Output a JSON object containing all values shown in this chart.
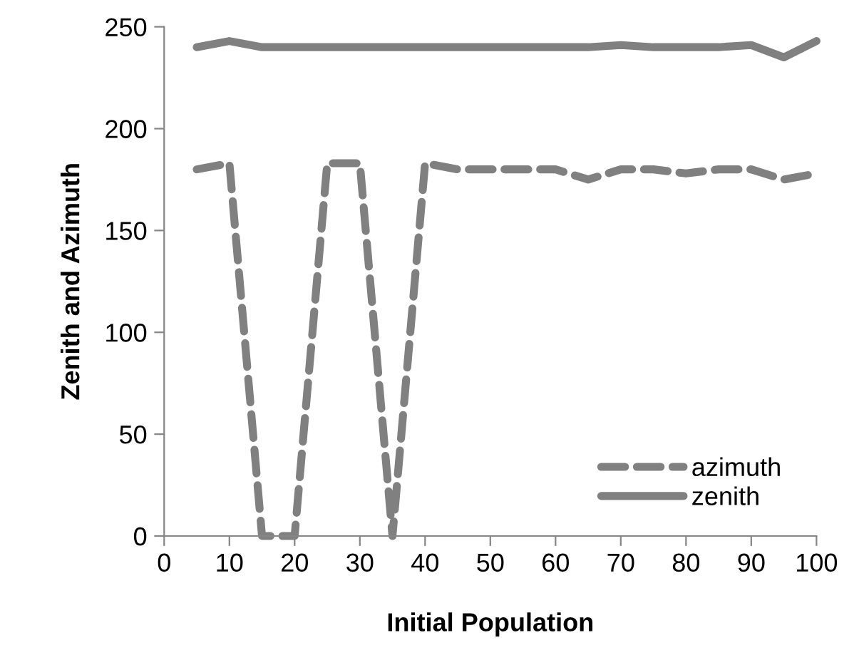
{
  "chart_data": {
    "type": "line",
    "xlabel": "Initial Population",
    "ylabel": "Zenith and Azimuth",
    "x": [
      5,
      10,
      15,
      20,
      25,
      30,
      35,
      40,
      45,
      50,
      55,
      60,
      65,
      70,
      75,
      80,
      85,
      90,
      95,
      100
    ],
    "series": [
      {
        "name": "azimuth",
        "color": "#808080",
        "line_style": "dashed",
        "values": [
          180,
          183,
          0,
          0,
          183,
          183,
          0,
          183,
          180,
          180,
          180,
          180,
          175,
          180,
          180,
          178,
          180,
          180,
          175,
          178
        ]
      },
      {
        "name": "zenith",
        "color": "#808080",
        "line_style": "solid",
        "values": [
          240,
          243,
          240,
          240,
          240,
          240,
          240,
          240,
          240,
          240,
          240,
          240,
          240,
          241,
          240,
          240,
          240,
          241,
          235,
          243
        ]
      }
    ],
    "xlim": [
      0,
      100
    ],
    "ylim": [
      0,
      250
    ],
    "xticks": [
      0,
      10,
      20,
      30,
      40,
      50,
      60,
      70,
      80,
      90,
      100
    ],
    "yticks": [
      0,
      50,
      100,
      150,
      200,
      250
    ],
    "grid": false,
    "legend": "bottom right",
    "marker": "none"
  }
}
